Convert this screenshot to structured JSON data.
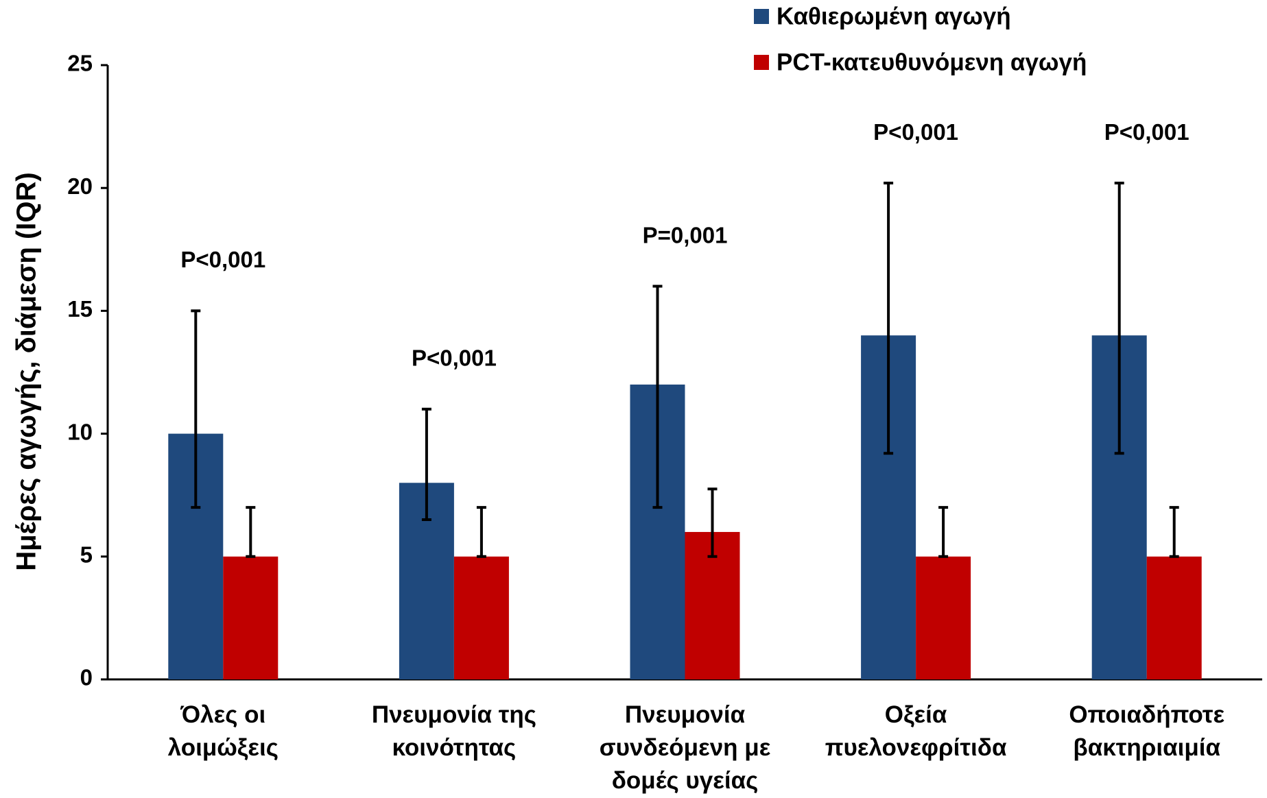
{
  "chart_data": {
    "type": "bar",
    "y_label": "Ημέρες αγωγής, διάμεση (IQR)",
    "categories": [
      "Όλες οι\nλοιμώξεις",
      "Πνευμονία της\nκοινότητας",
      "Πνευμονία\nσυνδεόμενη με\nδομές υγείας",
      "Οξεία\nπυελονεφρίτιδα",
      "Οποιαδήποτε\nβακτηριαιμία"
    ],
    "series": [
      {
        "name": "Καθιερωμένη αγωγή",
        "color": "#1f497d",
        "values": [
          10,
          8,
          12,
          14,
          14
        ],
        "iqr_low": [
          7,
          6.5,
          7,
          9.2,
          9.2
        ],
        "iqr_high": [
          15,
          11,
          16,
          20.2,
          20.2
        ]
      },
      {
        "name": "PCT-κατευθυνόμενη αγωγή",
        "color": "#c00000",
        "values": [
          5,
          5,
          6,
          5,
          5
        ],
        "iqr_low": [
          5,
          5,
          5,
          5,
          5
        ],
        "iqr_high": [
          7,
          7,
          7.75,
          7,
          7
        ]
      }
    ],
    "annotations": [
      "P<0,001",
      "P<0,001",
      "P=0,001",
      "P<0,001",
      "P<0,001"
    ],
    "ylim": [
      0,
      25
    ],
    "yticks": [
      0,
      5,
      10,
      15,
      20,
      25
    ],
    "grid": false,
    "legend": "top-right"
  }
}
